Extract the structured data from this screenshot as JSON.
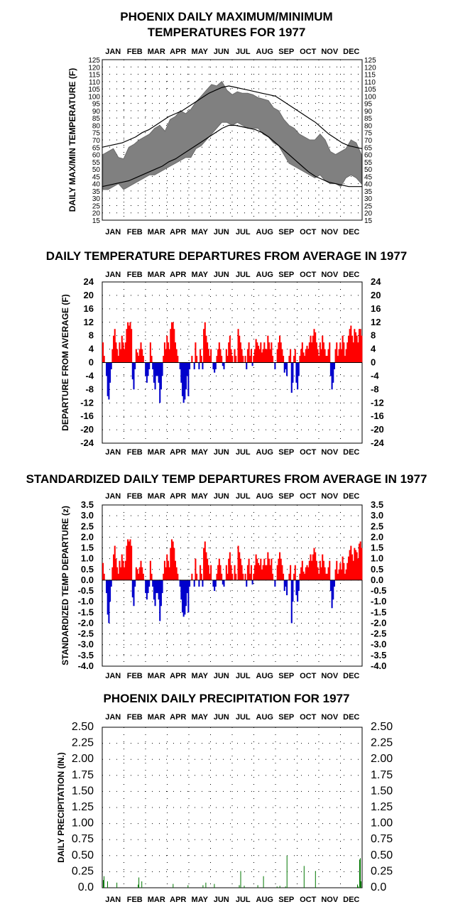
{
  "months": [
    "JAN",
    "FEB",
    "MAR",
    "APR",
    "MAY",
    "JUN",
    "JUL",
    "AUG",
    "SEP",
    "OCT",
    "NOV",
    "DEC"
  ],
  "chart_data": [
    {
      "type": "area",
      "title_lines": [
        "PHOENIX DAILY MAXIMUM/MINIMUM",
        "TEMPERATURES FOR 1977"
      ],
      "ylabel": "DAILY MAX/MIN TEMPERATURE (F)",
      "ylim": [
        15,
        125
      ],
      "yticks": [
        "125",
        "120",
        "115",
        "110",
        "105",
        "100",
        "95",
        "90",
        "85",
        "80",
        "75",
        "70",
        "65",
        "60",
        "55",
        "50",
        "45",
        "40",
        "35",
        "30",
        "25",
        "20",
        "15"
      ],
      "grid": "dotted",
      "series": [
        {
          "name": "",
          "color": "#808080",
          "values_note": "",
          "max_values": [
            60,
            62,
            64,
            58,
            57,
            65,
            67,
            70,
            72,
            74,
            78,
            80,
            76,
            84,
            86,
            90,
            88,
            91,
            96,
            100,
            104,
            108,
            107,
            110,
            104,
            101,
            103,
            102,
            102,
            101,
            99,
            98,
            97,
            92,
            90,
            84,
            80,
            78,
            74,
            72,
            70,
            70,
            74,
            70,
            62,
            60,
            62,
            64,
            70,
            68,
            60
          ],
          "min_values": [
            36,
            36,
            38,
            40,
            36,
            38,
            40,
            42,
            44,
            46,
            46,
            48,
            50,
            52,
            54,
            56,
            58,
            58,
            64,
            66,
            70,
            74,
            78,
            82,
            82,
            80,
            82,
            80,
            78,
            78,
            78,
            74,
            72,
            68,
            66,
            60,
            54,
            52,
            50,
            48,
            46,
            44,
            46,
            42,
            40,
            40,
            38,
            44,
            46,
            44,
            40
          ]
        },
        {
          "name": "",
          "color": "#000000",
          "normal_max": [
            65,
            66,
            67,
            68,
            70,
            72,
            75,
            77,
            80,
            83,
            86,
            88,
            90,
            93,
            96,
            99,
            102,
            104,
            106,
            107,
            106,
            105,
            104,
            103,
            102,
            101,
            100,
            97,
            94,
            91,
            88,
            85,
            82,
            78,
            74,
            71,
            68,
            66,
            65,
            64
          ],
          "normal_min": [
            38,
            39,
            40,
            41,
            42,
            44,
            46,
            48,
            50,
            52,
            55,
            57,
            60,
            63,
            66,
            69,
            72,
            75,
            78,
            80,
            80,
            79,
            78,
            77,
            75,
            72,
            68,
            64,
            60,
            56,
            52,
            48,
            45,
            43,
            41,
            40,
            39,
            38,
            38,
            38
          ]
        }
      ]
    },
    {
      "type": "bar",
      "title": "DAILY TEMPERATURE DEPARTURES FROM AVERAGE IN 1977",
      "ylabel": "DEPARTURE FROM AVERAGE (F)",
      "ylim": [
        -24,
        24
      ],
      "yticks": [
        "24",
        "20",
        "16",
        "12",
        "8",
        "4",
        "0",
        "-4",
        "-8",
        "-12",
        "-16",
        "-20",
        "-24"
      ],
      "positive_color": "#ff0000",
      "negative_color": "#0000cc",
      "values": [
        6,
        2,
        0,
        -4,
        -10,
        -11,
        -6,
        -2,
        4,
        8,
        10,
        6,
        4,
        2,
        6,
        4,
        8,
        6,
        4,
        6,
        10,
        12,
        11,
        12,
        10,
        -5,
        -8,
        -2,
        4,
        3,
        2,
        4,
        6,
        4,
        2,
        0,
        -4,
        -6,
        -4,
        -2,
        6,
        2,
        -2,
        -6,
        -8,
        -4,
        -4,
        -6,
        -12,
        -8,
        -4,
        2,
        6,
        4,
        8,
        6,
        4,
        10,
        12,
        12,
        10,
        6,
        4,
        2,
        0,
        -2,
        -6,
        -10,
        -12,
        -11,
        -8,
        -4,
        -10,
        -2,
        0,
        2,
        0,
        -2,
        6,
        2,
        0,
        -2,
        4,
        2,
        -2,
        10,
        12,
        8,
        6,
        4,
        2,
        4,
        0,
        -2,
        -3,
        -2,
        2,
        4,
        6,
        4,
        2,
        -1,
        -2,
        0,
        4,
        2,
        6,
        8,
        4,
        2,
        0,
        4,
        2,
        0,
        10,
        8,
        6,
        4,
        2,
        0,
        2,
        -2,
        4,
        6,
        2,
        4,
        -1,
        2,
        4,
        7,
        6,
        5,
        4,
        6,
        3,
        4,
        6,
        4,
        4,
        8,
        6,
        4,
        6,
        2,
        0,
        -2,
        0,
        4,
        6,
        8,
        6,
        4,
        2,
        -3,
        -2,
        -4,
        0,
        2,
        4,
        -9,
        -6,
        2,
        4,
        -6,
        -8,
        -4,
        2,
        4,
        6,
        3,
        2,
        4,
        5,
        4,
        6,
        8,
        6,
        8,
        10,
        9,
        6,
        4,
        2,
        6,
        4,
        8,
        6,
        4,
        2,
        2,
        4,
        6,
        -4,
        -8,
        -6,
        -2,
        4,
        6,
        2,
        4,
        6,
        4,
        8,
        6,
        2,
        4,
        6,
        8,
        10,
        11,
        8,
        6,
        10,
        9,
        8,
        6,
        10,
        10,
        8
      ]
    },
    {
      "type": "bar",
      "title": "STANDARDIZED DAILY TEMP DEPARTURES FROM AVERAGE IN 1977",
      "ylabel": "STANDARDIZED TEMP DEPARTURE (z)",
      "ylim": [
        -4.0,
        3.5
      ],
      "yticks": [
        "3.5",
        "3.0",
        "2.5",
        "2.0",
        "1.5",
        "1.0",
        "0.5",
        "0.0",
        "-0.5",
        "-1.0",
        "-1.5",
        "-2.0",
        "-2.5",
        "-3.0",
        "-3.5",
        "-4.0"
      ],
      "positive_color": "#ff0000",
      "negative_color": "#0000cc",
      "values": [
        0.8,
        0.3,
        0,
        -0.6,
        -1.6,
        -2.0,
        -1.0,
        -0.3,
        0.6,
        1.2,
        1.6,
        1.0,
        0.6,
        0.3,
        0.9,
        0.6,
        1.2,
        0.9,
        0.6,
        0.9,
        1.6,
        1.9,
        1.8,
        1.9,
        1.6,
        -0.8,
        -1.2,
        -0.3,
        0.6,
        0.5,
        0.3,
        0.6,
        0.9,
        0.6,
        0.3,
        0,
        -0.6,
        -0.9,
        -0.6,
        -0.3,
        0.9,
        0.3,
        -0.3,
        -0.9,
        -1.2,
        -0.6,
        -0.6,
        -0.9,
        -1.9,
        -1.2,
        -0.6,
        0.3,
        0.9,
        0.6,
        1.2,
        0.9,
        0.6,
        1.5,
        1.9,
        1.8,
        1.5,
        0.9,
        0.6,
        0.3,
        0,
        -0.3,
        -0.9,
        -1.5,
        -1.7,
        -1.6,
        -1.2,
        -0.6,
        -1.5,
        -0.3,
        0,
        0.3,
        0,
        -0.3,
        1.0,
        0.3,
        0,
        -0.3,
        0.7,
        0.3,
        -0.3,
        1.5,
        1.8,
        1.3,
        1.0,
        0.7,
        0.3,
        0.7,
        0,
        -0.3,
        -0.5,
        -0.3,
        0.3,
        0.7,
        1.0,
        0.7,
        0.3,
        -0.2,
        -0.3,
        0,
        0.7,
        0.3,
        1.0,
        1.3,
        0.7,
        0.3,
        0,
        0.7,
        0.3,
        0,
        1.6,
        1.3,
        1.0,
        0.7,
        0.3,
        0,
        0.3,
        -0.3,
        0.7,
        1.0,
        0.3,
        0.7,
        -0.2,
        0.3,
        0.7,
        1.2,
        1.0,
        0.8,
        0.7,
        1.0,
        0.5,
        0.7,
        1.0,
        0.7,
        0.7,
        1.3,
        1.0,
        0.7,
        1.0,
        0.3,
        0,
        -0.3,
        0,
        0.7,
        1.0,
        1.3,
        1.0,
        0.7,
        0.3,
        -0.5,
        -0.3,
        -0.7,
        0,
        0.3,
        0.7,
        -2.0,
        -1.0,
        0.3,
        0.7,
        -0.7,
        -1.0,
        -0.5,
        0.3,
        0.6,
        0.9,
        0.4,
        0.3,
        0.6,
        0.7,
        0.6,
        0.9,
        1.2,
        0.9,
        1.2,
        1.5,
        1.3,
        0.9,
        0.6,
        0.3,
        0.9,
        0.6,
        1.2,
        0.9,
        0.6,
        0.3,
        0.3,
        0.6,
        0.9,
        -0.5,
        -1.3,
        -0.9,
        -0.3,
        0.5,
        0.9,
        0.3,
        0.5,
        0.8,
        0.5,
        1.1,
        0.8,
        0.3,
        0.5,
        0.8,
        1.1,
        1.4,
        1.6,
        1.2,
        0.9,
        1.5,
        1.4,
        1.3,
        1.0,
        1.7,
        1.8,
        1.5
      ]
    },
    {
      "type": "bar",
      "title": "PHOENIX DAILY PRECIPITATION FOR 1977",
      "ylabel": "DAILY PRECIPITATION (IN.)",
      "ylim": [
        0,
        2.5
      ],
      "yticks": [
        "2.50",
        "2.25",
        "2.00",
        "1.75",
        "1.50",
        "1.25",
        "1.00",
        "0.75",
        "0.50",
        "0.25",
        "0.0"
      ],
      "color": "#007700",
      "days": [
        2,
        3,
        8,
        21,
        51,
        52,
        56,
        100,
        121,
        142,
        146,
        158,
        193,
        195,
        200,
        219,
        227,
        246,
        250,
        258,
        260,
        284,
        300,
        359,
        360,
        362,
        363,
        364
      ],
      "values": [
        0.12,
        0.18,
        0.1,
        0.08,
        0.05,
        0.16,
        0.1,
        0.06,
        0.04,
        0.04,
        0.08,
        0.06,
        0.04,
        0.26,
        0.03,
        0.04,
        0.18,
        0.02,
        0.03,
        0.02,
        0.5,
        0.34,
        0.26,
        0.05,
        0.02,
        0.44,
        0.46,
        0.1
      ]
    }
  ]
}
